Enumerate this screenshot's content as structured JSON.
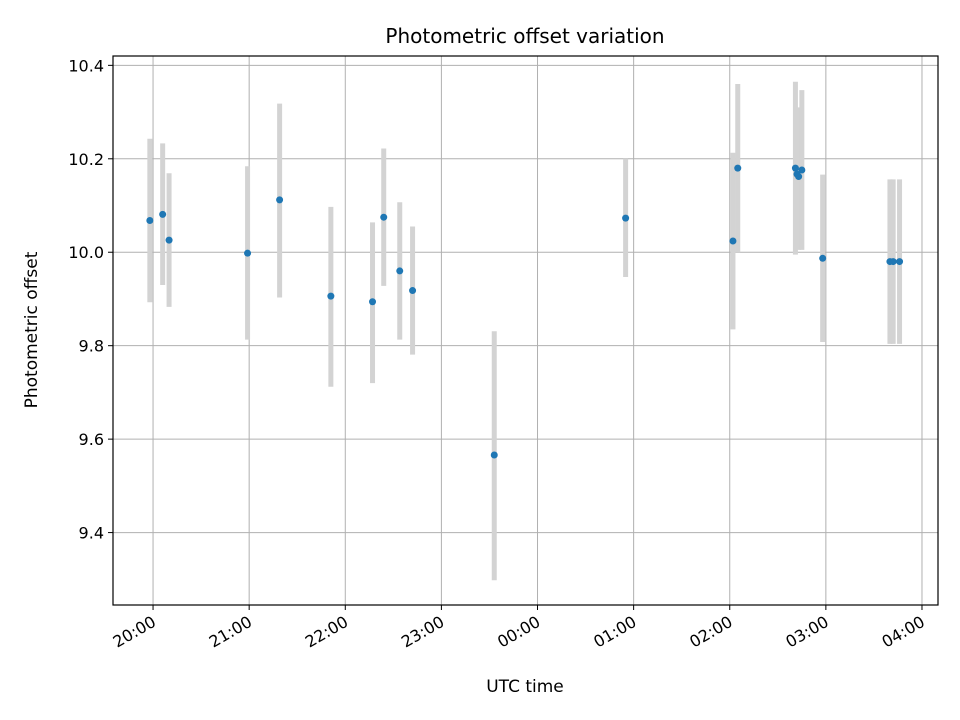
{
  "chart_data": {
    "type": "scatter",
    "title": "Photometric offset variation",
    "xlabel": "UTC time",
    "ylabel": "Photometric offset",
    "x_axis": {
      "kind": "time",
      "start": "19:35",
      "end": "04:10",
      "ticks": [
        "20:00",
        "21:00",
        "22:00",
        "23:00",
        "00:00",
        "01:00",
        "02:00",
        "03:00",
        "04:00"
      ]
    },
    "y_axis": {
      "ylim": [
        9.245,
        10.42
      ],
      "ticks": [
        "9.4",
        "9.6",
        "9.8",
        "10.0",
        "10.2",
        "10.4"
      ]
    },
    "grid": true,
    "colors": {
      "points": "#1f77b4",
      "errorbars": "#d3d3d3",
      "grid": "#b0b0b0"
    },
    "points": [
      {
        "x": "19:58",
        "y": 10.068,
        "ylow": 9.893,
        "yhigh": 10.243
      },
      {
        "x": "20:06",
        "y": 10.081,
        "ylow": 9.93,
        "yhigh": 10.233
      },
      {
        "x": "20:10",
        "y": 10.026,
        "ylow": 9.883,
        "yhigh": 10.169
      },
      {
        "x": "20:59",
        "y": 9.998,
        "ylow": 9.813,
        "yhigh": 10.184
      },
      {
        "x": "21:19",
        "y": 10.112,
        "ylow": 9.903,
        "yhigh": 10.318
      },
      {
        "x": "21:51",
        "y": 9.906,
        "ylow": 9.712,
        "yhigh": 10.097
      },
      {
        "x": "22:17",
        "y": 9.894,
        "ylow": 9.72,
        "yhigh": 10.064
      },
      {
        "x": "22:24",
        "y": 10.075,
        "ylow": 9.928,
        "yhigh": 10.222
      },
      {
        "x": "22:34",
        "y": 9.96,
        "ylow": 9.813,
        "yhigh": 10.107
      },
      {
        "x": "22:42",
        "y": 9.918,
        "ylow": 9.781,
        "yhigh": 10.055
      },
      {
        "x": "23:33",
        "y": 9.566,
        "ylow": 9.298,
        "yhigh": 9.831
      },
      {
        "x": "00:55",
        "y": 10.073,
        "ylow": 9.947,
        "yhigh": 10.2
      },
      {
        "x": "02:02",
        "y": 10.024,
        "ylow": 9.835,
        "yhigh": 10.213
      },
      {
        "x": "02:05",
        "y": 10.18,
        "ylow": 10.0,
        "yhigh": 10.36
      },
      {
        "x": "02:41",
        "y": 10.18,
        "ylow": 9.995,
        "yhigh": 10.365
      },
      {
        "x": "02:42",
        "y": 10.167,
        "ylow": 10.02,
        "yhigh": 10.31
      },
      {
        "x": "02:43",
        "y": 10.162,
        "ylow": 10.005,
        "yhigh": 10.3
      },
      {
        "x": "02:45",
        "y": 10.176,
        "ylow": 10.005,
        "yhigh": 10.347
      },
      {
        "x": "02:58",
        "y": 9.987,
        "ylow": 9.808,
        "yhigh": 10.166
      },
      {
        "x": "03:40",
        "y": 9.98,
        "ylow": 9.804,
        "yhigh": 10.156
      },
      {
        "x": "03:42",
        "y": 9.98,
        "ylow": 9.804,
        "yhigh": 10.156
      },
      {
        "x": "03:46",
        "y": 9.98,
        "ylow": 9.804,
        "yhigh": 10.156
      }
    ]
  }
}
